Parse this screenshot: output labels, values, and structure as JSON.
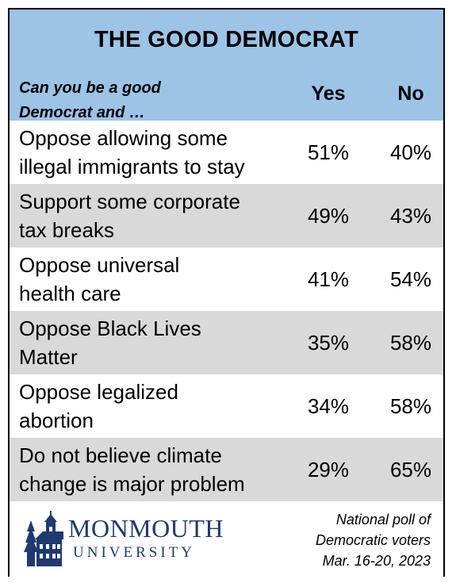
{
  "title": "THE GOOD DEMOCRAT",
  "header": {
    "question_line1": "Can you be a good",
    "question_line2": "Democrat and …",
    "yes_label": "Yes",
    "no_label": "No"
  },
  "rows": [
    {
      "line1": "Oppose allowing some",
      "line2": "illegal immigrants to stay",
      "yes": "51%",
      "no": "40%"
    },
    {
      "line1": "Support some corporate",
      "line2": "tax breaks",
      "yes": "49%",
      "no": "43%"
    },
    {
      "line1": "Oppose universal",
      "line2": "health care",
      "yes": "41%",
      "no": "54%"
    },
    {
      "line1": "Oppose Black Lives",
      "line2": "Matter",
      "yes": "35%",
      "no": "58%"
    },
    {
      "line1": "Oppose legalized",
      "line2": "abortion",
      "yes": "34%",
      "no": "58%"
    },
    {
      "line1": "Do not believe climate",
      "line2": "change is major problem",
      "yes": "29%",
      "no": "65%"
    }
  ],
  "footer": {
    "logo_line1": "MONMOUTH",
    "logo_line2": "UNIVERSITY",
    "note_line1": "National poll of",
    "note_line2": "Democratic voters",
    "note_line3": "Mar. 16-20, 2023"
  },
  "colors": {
    "header_bg": "#9dc3e6",
    "stripe": "#d9d9d9",
    "logo": "#1f3a6e"
  },
  "icons": {
    "logo_building": "monmouth-hall-icon"
  }
}
